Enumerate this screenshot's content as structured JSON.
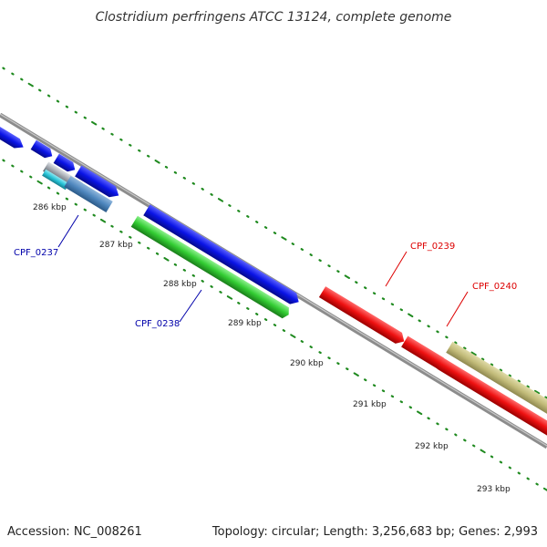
{
  "title": "Clostridium perfringens ATCC 13124, complete genome",
  "footer": {
    "accession": "Accession: NC_008261",
    "summary": "Topology: circular; Length: 3,256,683 bp; Genes: 2,993"
  },
  "kbp_ticks": [
    "286 kbp",
    "287 kbp",
    "288 kbp",
    "289 kbp",
    "290 kbp",
    "291 kbp",
    "292 kbp",
    "293 kbp"
  ],
  "gene_labels": {
    "cpf_0237": "CPF_0237",
    "cpf_0238": "CPF_0238",
    "cpf_0239": "CPF_0239",
    "cpf_0240": "CPF_0240"
  },
  "colors": {
    "backbone": "#8c8c8c",
    "tick_green": "#1f8a1f",
    "gene_blue": "#0a14e6",
    "gene_red": "#ee1111",
    "gene_green": "#33cc33",
    "gene_khaki": "#c2bb79",
    "gene_steel": "#4f87be",
    "gene_cyan": "#28c4d8",
    "gene_gray": "#9aa0a8",
    "label_blue": "#0000aa",
    "label_red": "#dd0000"
  }
}
